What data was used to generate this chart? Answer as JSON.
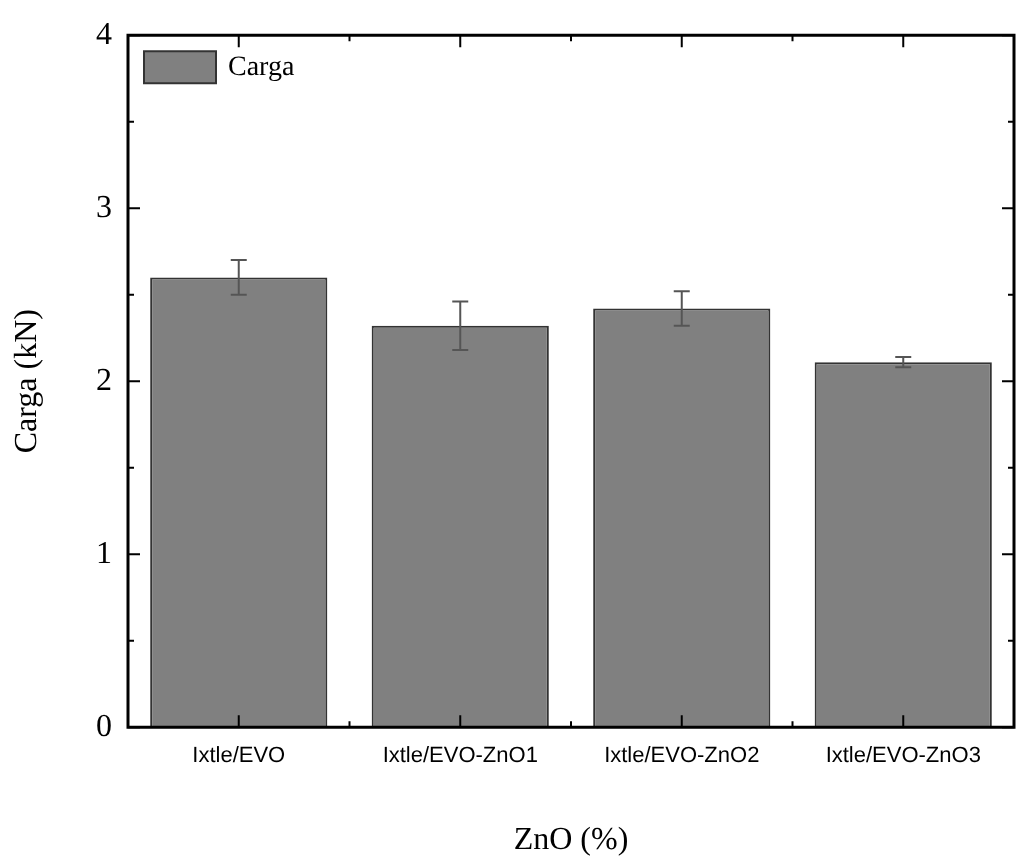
{
  "chart_data": {
    "type": "bar",
    "xlabel": "ZnO (%)",
    "ylabel": "Carga (kN)",
    "categories": [
      "Ixtle/EVO",
      "Ixtle/EVO-ZnO1",
      "Ixtle/EVO-ZnO2",
      "Ixtle/EVO-ZnO3"
    ],
    "series": [
      {
        "name": "Carga",
        "color": "#808080",
        "values": [
          2.6,
          2.32,
          2.42,
          2.11
        ],
        "errors": [
          0.1,
          0.14,
          0.1,
          0.03
        ]
      }
    ],
    "ylim": [
      0,
      4
    ],
    "yticks": [
      0,
      1,
      2,
      3,
      4
    ],
    "grid": false,
    "legend": "top left"
  }
}
